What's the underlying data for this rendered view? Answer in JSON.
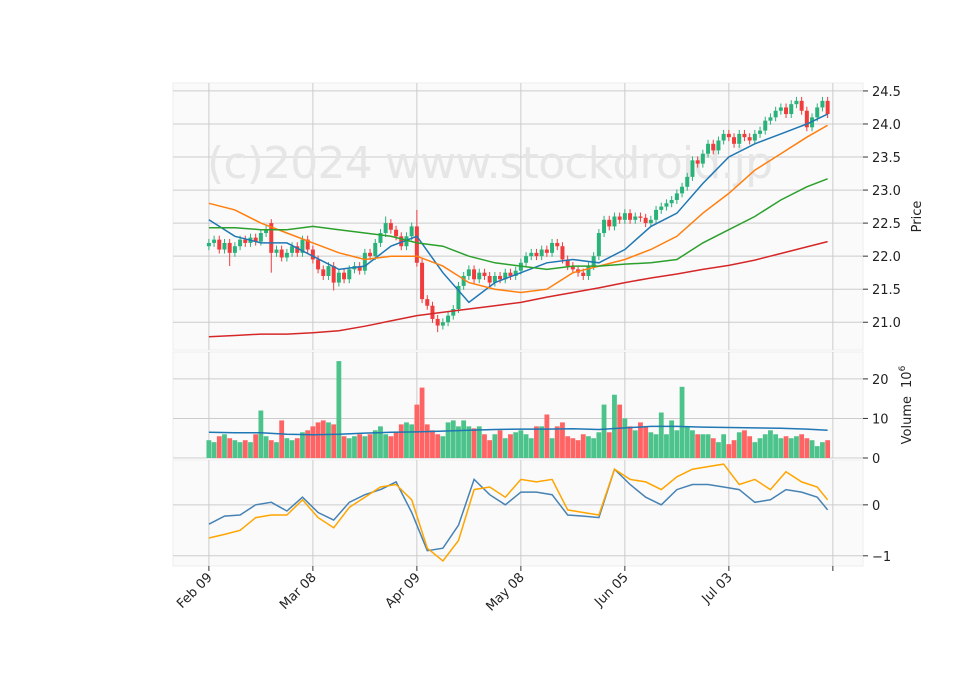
{
  "chart_data": [
    {
      "type": "candlestick",
      "watermark": "(c)2024 www.stockdroid.jp",
      "ylabel": "Price",
      "up_color": "#2ab27b",
      "down_color": "#f03c3c",
      "xlim": [
        -6.9,
        125.8
      ],
      "xticks": [
        0,
        20,
        40,
        60,
        80,
        100,
        120
      ],
      "ylim": [
        20.58,
        24.62
      ],
      "yticks": [
        {
          "value": 21,
          "label": "21.0"
        },
        21.5,
        {
          "value": 22,
          "label": "22.0"
        },
        22.5,
        {
          "value": 23,
          "label": "23.0"
        },
        23.5,
        {
          "value": 24,
          "label": "24.0"
        },
        24.5
      ],
      "grid": true,
      "open": [
        22.15,
        22.2,
        22.25,
        22.1,
        22.2,
        22.05,
        22.15,
        22.25,
        22.2,
        22.28,
        22.22,
        22.35,
        22.5,
        22.05,
        22.1,
        21.98,
        22.05,
        22.15,
        22.05,
        22.25,
        22.1,
        21.95,
        21.8,
        21.7,
        21.85,
        21.6,
        21.75,
        21.65,
        21.8,
        21.85,
        21.78,
        22.05,
        22.0,
        22.2,
        22.35,
        22.5,
        22.4,
        22.3,
        22.15,
        22.3,
        22.45,
        21.9,
        21.35,
        21.25,
        21.05,
        20.95,
        21.0,
        21.1,
        21.2,
        21.55,
        21.7,
        21.8,
        21.65,
        21.75,
        21.7,
        21.6,
        21.7,
        21.65,
        21.75,
        21.7,
        21.78,
        21.9,
        22.0,
        22.05,
        22.0,
        22.1,
        22.05,
        22.2,
        22.15,
        21.95,
        21.85,
        21.8,
        21.75,
        21.7,
        21.85,
        22.0,
        22.35,
        22.55,
        22.45,
        22.6,
        22.55,
        22.65,
        22.55,
        22.6,
        22.58,
        22.5,
        22.55,
        22.7,
        22.75,
        22.8,
        22.85,
        22.95,
        23.05,
        23.2,
        23.45,
        23.4,
        23.55,
        23.7,
        23.6,
        23.75,
        23.85,
        23.8,
        23.7,
        23.85,
        23.8,
        23.75,
        23.85,
        23.9,
        24.05,
        24.1,
        24.2,
        24.25,
        24.15,
        24.3,
        24.35,
        24.2,
        23.95,
        24.1,
        24.25,
        24.35
      ],
      "high": [
        22.26,
        22.31,
        22.31,
        22.26,
        22.26,
        22.21,
        22.31,
        22.31,
        22.34,
        22.34,
        22.41,
        22.46,
        22.56,
        22.16,
        22.16,
        22.11,
        22.21,
        22.21,
        22.31,
        22.31,
        22.16,
        22.01,
        21.86,
        21.91,
        21.91,
        21.81,
        21.81,
        21.86,
        21.91,
        21.91,
        22.11,
        22.11,
        22.26,
        22.41,
        22.6,
        22.56,
        22.46,
        22.36,
        22.36,
        22.51,
        22.7,
        21.96,
        21.41,
        21.31,
        21.11,
        21.06,
        21.16,
        21.26,
        21.61,
        21.76,
        21.86,
        21.86,
        21.81,
        21.81,
        21.76,
        21.76,
        21.76,
        21.81,
        21.81,
        21.84,
        21.96,
        22.06,
        22.11,
        22.11,
        22.16,
        22.16,
        22.26,
        22.26,
        22.21,
        22.01,
        21.91,
        21.86,
        21.81,
        21.91,
        22.06,
        22.41,
        22.61,
        22.61,
        22.66,
        22.66,
        22.71,
        22.71,
        22.66,
        22.66,
        22.64,
        22.61,
        22.76,
        22.81,
        22.86,
        22.91,
        23.01,
        23.11,
        23.26,
        23.51,
        23.51,
        23.61,
        23.76,
        23.76,
        23.81,
        23.91,
        23.91,
        23.86,
        23.91,
        23.91,
        23.86,
        23.91,
        23.96,
        24.11,
        24.16,
        24.26,
        24.31,
        24.31,
        24.36,
        24.41,
        24.41,
        24.26,
        24.16,
        24.31,
        24.41,
        24.41
      ],
      "low": [
        22.09,
        22.14,
        22.04,
        22.04,
        21.85,
        21.99,
        22.09,
        22.14,
        22.14,
        22.16,
        22.16,
        22.29,
        21.75,
        21.99,
        21.92,
        21.92,
        21.99,
        21.99,
        21.99,
        22.04,
        21.89,
        21.74,
        21.64,
        21.64,
        21.48,
        21.54,
        21.59,
        21.59,
        21.74,
        21.72,
        21.72,
        21.94,
        21.94,
        22.14,
        22.29,
        22.34,
        22.24,
        22.09,
        22.09,
        22.24,
        21.84,
        21.29,
        21.19,
        20.99,
        20.85,
        20.89,
        20.94,
        21.04,
        21.14,
        21.49,
        21.64,
        21.59,
        21.59,
        21.64,
        21.54,
        21.54,
        21.59,
        21.59,
        21.64,
        21.64,
        21.72,
        21.84,
        21.94,
        21.94,
        21.94,
        21.99,
        21.99,
        22.09,
        21.89,
        21.79,
        21.74,
        21.69,
        21.64,
        21.64,
        21.79,
        21.94,
        22.29,
        22.39,
        22.39,
        22.49,
        22.49,
        22.49,
        22.49,
        22.52,
        22.44,
        22.44,
        22.49,
        22.64,
        22.69,
        22.74,
        22.79,
        22.89,
        22.99,
        23.14,
        23.34,
        23.34,
        23.49,
        23.54,
        23.54,
        23.69,
        23.74,
        23.64,
        23.64,
        23.74,
        23.69,
        23.69,
        23.79,
        23.84,
        23.99,
        24.04,
        24.14,
        24.09,
        24.09,
        24.24,
        24.14,
        23.89,
        23.89,
        24.04,
        24.19,
        24.09
      ],
      "close": [
        22.2,
        22.25,
        22.1,
        22.2,
        22.05,
        22.15,
        22.25,
        22.2,
        22.28,
        22.22,
        22.35,
        22.4,
        22.05,
        22.1,
        21.98,
        22.05,
        22.15,
        22.05,
        22.25,
        22.1,
        21.95,
        21.8,
        21.7,
        21.85,
        21.6,
        21.75,
        21.65,
        21.8,
        21.85,
        21.78,
        22.05,
        22.0,
        22.2,
        22.35,
        22.5,
        22.4,
        22.3,
        22.15,
        22.3,
        22.45,
        21.9,
        21.35,
        21.25,
        21.05,
        20.95,
        21.0,
        21.1,
        21.2,
        21.55,
        21.7,
        21.8,
        21.65,
        21.75,
        21.7,
        21.6,
        21.7,
        21.65,
        21.75,
        21.7,
        21.78,
        21.9,
        22.0,
        22.05,
        22.0,
        22.1,
        22.05,
        22.2,
        22.15,
        21.95,
        21.85,
        21.8,
        21.75,
        21.7,
        21.85,
        22.0,
        22.35,
        22.55,
        22.45,
        22.6,
        22.55,
        22.65,
        22.55,
        22.6,
        22.58,
        22.5,
        22.55,
        22.7,
        22.75,
        22.8,
        22.85,
        22.95,
        23.05,
        23.2,
        23.45,
        23.4,
        23.55,
        23.7,
        23.6,
        23.75,
        23.85,
        23.8,
        23.7,
        23.85,
        23.8,
        23.75,
        23.85,
        23.9,
        24.05,
        24.1,
        24.2,
        24.25,
        24.15,
        24.3,
        24.35,
        24.2,
        23.95,
        24.1,
        24.25,
        24.35,
        24.15
      ],
      "lines": {
        "x": [
          0,
          5,
          10,
          15,
          20,
          25,
          30,
          35,
          40,
          45,
          50,
          55,
          60,
          65,
          70,
          75,
          80,
          85,
          90,
          95,
          100,
          105,
          110,
          115,
          119
        ],
        "series": [
          {
            "color": "#1f77b4",
            "values": [
              22.55,
              22.3,
              22.2,
              22.2,
              22.0,
              21.8,
              21.85,
              22.15,
              22.3,
              21.75,
              21.3,
              21.6,
              21.75,
              21.9,
              21.95,
              21.9,
              22.1,
              22.45,
              22.65,
              23.1,
              23.5,
              23.7,
              23.85,
              24.0,
              24.15
            ]
          },
          {
            "color": "#ff7f0e",
            "values": [
              22.8,
              22.7,
              22.5,
              22.35,
              22.2,
              22.05,
              21.95,
              22.0,
              22.0,
              21.85,
              21.6,
              21.5,
              21.45,
              21.5,
              21.75,
              21.85,
              21.95,
              22.1,
              22.3,
              22.65,
              22.95,
              23.3,
              23.55,
              23.8,
              23.98
            ]
          },
          {
            "color": "#2ca02c",
            "values": [
              22.43,
              22.43,
              22.4,
              22.4,
              22.45,
              22.4,
              22.35,
              22.3,
              22.2,
              22.15,
              22.0,
              21.9,
              21.85,
              21.8,
              21.85,
              21.85,
              21.88,
              21.9,
              21.95,
              22.2,
              22.4,
              22.6,
              22.85,
              23.05,
              23.17
            ]
          },
          {
            "color": "#d62728",
            "values": [
              20.78,
              20.8,
              20.82,
              20.82,
              20.84,
              20.87,
              20.94,
              21.02,
              21.1,
              21.15,
              21.2,
              21.25,
              21.3,
              21.38,
              21.45,
              21.52,
              21.6,
              21.67,
              21.73,
              21.8,
              21.86,
              21.94,
              22.04,
              22.14,
              22.22
            ]
          }
        ]
      }
    },
    {
      "type": "bar",
      "ylabel": "Volume",
      "multiplier": "10",
      "multiplier_exponent": "6",
      "up_color": "#4cc38a",
      "down_color": "#ff6464",
      "xlim": [
        -6.9,
        125.8
      ],
      "xticks": [
        0,
        20,
        40,
        60,
        80,
        100,
        120
      ],
      "ylim": [
        0,
        26.8
      ],
      "yticks": [
        0,
        10,
        20
      ],
      "grid": true,
      "values": [
        4.5,
        4,
        5.5,
        6,
        5,
        4.5,
        4,
        4.5,
        4,
        6,
        12,
        5.5,
        4.5,
        4,
        9.5,
        5,
        4.5,
        5,
        6.5,
        7,
        8,
        9,
        9.5,
        9,
        8.5,
        24.5,
        5.5,
        5,
        5.5,
        6,
        5.5,
        6,
        7,
        8,
        6,
        5.5,
        6.5,
        8.5,
        9,
        8.5,
        13.5,
        17.8,
        8.5,
        7,
        6,
        5.5,
        9,
        9.5,
        8,
        9.5,
        8,
        7.5,
        8,
        6,
        4.5,
        6,
        7,
        5,
        6,
        6.5,
        7,
        6,
        5,
        8,
        8,
        11,
        5,
        8,
        9,
        5.5,
        5,
        4.5,
        6,
        5.5,
        5,
        6.5,
        13.5,
        6.5,
        16,
        13.5,
        10,
        8,
        7,
        9,
        8,
        6.5,
        6,
        11.5,
        6,
        9.5,
        7,
        18,
        8,
        7,
        6,
        6,
        6,
        5,
        4,
        6,
        3.5,
        4.5,
        6.5,
        7,
        5.5,
        4,
        5,
        6,
        7,
        6,
        5,
        5.5,
        5,
        5.5,
        6,
        5,
        4.5,
        3,
        4,
        4.5
      ],
      "lines": {
        "x": [
          0,
          5,
          10,
          15,
          20,
          25,
          30,
          35,
          40,
          45,
          50,
          55,
          60,
          65,
          70,
          75,
          80,
          85,
          90,
          95,
          100,
          105,
          110,
          115,
          119
        ],
        "series": [
          {
            "color": "#1f77b4",
            "values": [
              6.5,
              6.4,
              6.4,
              6.0,
              5.9,
              6.0,
              6.3,
              6.5,
              6.6,
              6.8,
              7.0,
              7.2,
              7.3,
              7.3,
              7.4,
              7.2,
              7.6,
              8.0,
              8.0,
              7.8,
              7.7,
              7.6,
              7.5,
              7.3,
              7.0
            ]
          }
        ]
      }
    },
    {
      "type": "line",
      "xlim": [
        -6.9,
        125.8
      ],
      "xticks": [
        0,
        20,
        40,
        60,
        80,
        100,
        120
      ],
      "categories": [
        "Feb 09",
        null,
        null,
        null,
        null,
        null,
        null,
        null,
        null,
        null,
        null,
        null,
        null,
        null,
        null,
        null,
        null,
        null,
        null,
        null,
        "Mar 08",
        null,
        null,
        null,
        null,
        null,
        null,
        null,
        null,
        null,
        null,
        null,
        null,
        null,
        null,
        null,
        null,
        null,
        null,
        null,
        "Apr 09",
        null,
        null,
        null,
        null,
        null,
        null,
        null,
        null,
        null,
        null,
        null,
        null,
        null,
        null,
        null,
        null,
        null,
        null,
        null,
        "May 08",
        null,
        null,
        null,
        null,
        null,
        null,
        null,
        null,
        null,
        null,
        null,
        null,
        null,
        null,
        null,
        null,
        null,
        null,
        null,
        "Jun 05",
        null,
        null,
        null,
        null,
        null,
        null,
        null,
        null,
        null,
        null,
        null,
        null,
        null,
        null,
        null,
        null,
        null,
        null,
        null,
        "Jul 03",
        null,
        null,
        null,
        null,
        null,
        null,
        null,
        null,
        null,
        null,
        null,
        null,
        null,
        null,
        null,
        null,
        null,
        null,
        null
      ],
      "ylim": [
        -1.2,
        0.88
      ],
      "yticks": [
        {
          "value": -1,
          "label": "−1"
        },
        0
      ],
      "grid": true,
      "x": [
        0,
        3,
        6,
        9,
        12,
        15,
        18,
        21,
        24,
        27,
        30,
        33,
        36,
        39,
        42,
        45,
        48,
        51,
        54,
        57,
        60,
        63,
        66,
        69,
        72,
        75,
        78,
        81,
        84,
        87,
        90,
        93,
        96,
        99,
        102,
        105,
        108,
        111,
        114,
        117,
        119
      ],
      "series": [
        {
          "color": "#4682b4",
          "values": [
            -0.38,
            -0.22,
            -0.2,
            0.0,
            0.05,
            -0.12,
            0.15,
            -0.15,
            -0.3,
            0.05,
            0.2,
            0.3,
            0.45,
            -0.15,
            -0.9,
            -0.85,
            -0.4,
            0.5,
            0.2,
            0.0,
            0.25,
            0.25,
            0.2,
            -0.2,
            -0.22,
            -0.25,
            0.7,
            0.4,
            0.15,
            0.0,
            0.3,
            0.4,
            0.4,
            0.35,
            0.3,
            0.05,
            0.1,
            0.3,
            0.25,
            0.15,
            -0.1
          ]
        },
        {
          "color": "#ffa500",
          "values": [
            -0.65,
            -0.58,
            -0.5,
            -0.25,
            -0.2,
            -0.2,
            0.1,
            -0.25,
            -0.45,
            -0.05,
            0.15,
            0.35,
            0.4,
            0.1,
            -0.85,
            -1.1,
            -0.7,
            0.3,
            0.35,
            0.15,
            0.5,
            0.45,
            0.5,
            -0.1,
            -0.15,
            -0.2,
            0.7,
            0.5,
            0.45,
            0.3,
            0.55,
            0.7,
            0.75,
            0.8,
            0.4,
            0.5,
            0.3,
            0.65,
            0.45,
            0.35,
            0.1
          ]
        }
      ]
    }
  ]
}
